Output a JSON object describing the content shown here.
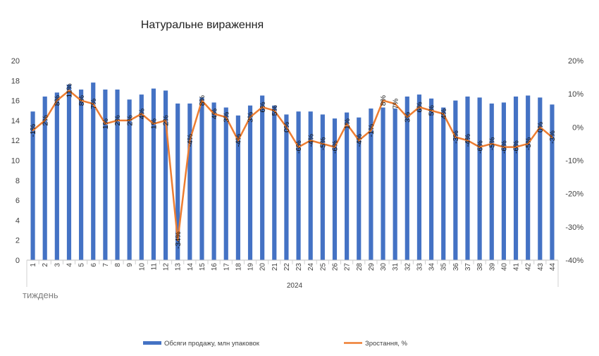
{
  "chart_data": {
    "type": "bar",
    "title": "Натуральне вираження",
    "xlabel": "тиждень",
    "x_group_label": "2024",
    "categories": [
      "1",
      "2",
      "3",
      "4",
      "5",
      "6",
      "7",
      "8",
      "9",
      "10",
      "11",
      "12",
      "13",
      "14",
      "15",
      "16",
      "17",
      "18",
      "19",
      "20",
      "21",
      "22",
      "23",
      "24",
      "25",
      "26",
      "27",
      "28",
      "29",
      "30",
      "31",
      "32",
      "33",
      "34",
      "35",
      "36",
      "37",
      "38",
      "39",
      "40",
      "41",
      "42",
      "43",
      "44"
    ],
    "series": [
      {
        "name": "Обсяги продажу, млн упаковок",
        "type": "bar",
        "axis": "left",
        "color": "#4472C4",
        "values": [
          14.9,
          16.4,
          16.8,
          17.6,
          17.1,
          17.8,
          17.1,
          17.1,
          16.1,
          16.6,
          17.2,
          17.0,
          15.7,
          15.7,
          16.3,
          15.8,
          15.3,
          14.5,
          15.5,
          16.5,
          15.5,
          14.6,
          14.9,
          14.9,
          14.6,
          14.2,
          14.8,
          14.3,
          15.2,
          15.3,
          15.2,
          16.4,
          16.6,
          16.2,
          15.3,
          16.0,
          16.4,
          16.3,
          15.7,
          15.8,
          16.4,
          16.5,
          16.3,
          15.6
        ]
      },
      {
        "name": "Зростання, %",
        "type": "line",
        "axis": "right",
        "color": "#ED7D31",
        "values": [
          -1,
          2,
          8,
          11,
          8,
          7,
          1,
          2,
          2,
          4,
          1,
          2,
          -34,
          -4,
          8,
          4,
          3,
          -4,
          3,
          6,
          5,
          0,
          -6,
          -4,
          -5,
          -6,
          1,
          -4,
          -1,
          8,
          7,
          3,
          6,
          5,
          4,
          -3,
          -4,
          -6,
          -5,
          -6,
          -6,
          -5,
          0,
          -3
        ],
        "labels": [
          "-1%",
          "2%",
          "8%",
          "11%",
          "8%",
          "7%",
          "1%",
          "2%",
          "2%",
          "4%",
          "1%",
          "2%",
          "-34%",
          "-4%",
          "8%",
          "4%",
          "3%",
          "-4%",
          "3%",
          "6%",
          "5%",
          "0%",
          "-6%",
          "-4%",
          "-5%",
          "-6%",
          "1%",
          "-4%",
          "-1%",
          "8%",
          "7%",
          "3%",
          "6%",
          "5%",
          "4%",
          "-3%",
          "-4%",
          "-6%",
          "-5%",
          "-6%",
          "-6%",
          "-5%",
          "0%",
          "-3%"
        ]
      }
    ],
    "ylim_left": [
      0,
      20
    ],
    "yticks_left": [
      "0",
      "2",
      "4",
      "6",
      "8",
      "10",
      "12",
      "14",
      "16",
      "18",
      "20"
    ],
    "ylim_right": [
      -40,
      20
    ],
    "yticks_right": [
      "-40%",
      "-30%",
      "-20%",
      "-10%",
      "0%",
      "10%",
      "20%"
    ],
    "grid": false,
    "legend_position": "bottom"
  }
}
